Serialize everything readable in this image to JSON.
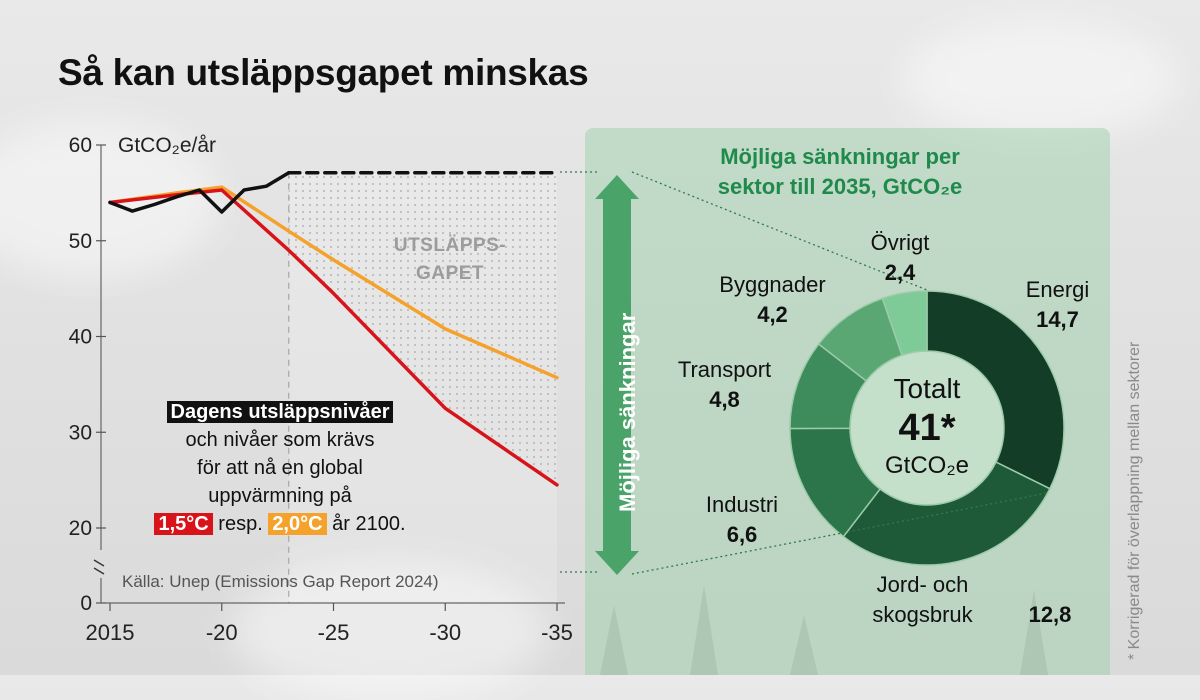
{
  "title": "Så kan utsläppsgapet minskas",
  "colors": {
    "black_line": "#111111",
    "red_line": "#d8141a",
    "orange_line": "#f5a22c",
    "dark_green": "#143d27",
    "green_2": "#1f5a38",
    "green_3": "#2c7449",
    "green_4": "#3e8b5b",
    "green_5": "#5aa773",
    "green_6": "#7ecb98",
    "title_green": "#1f8a4c"
  },
  "chart_data": [
    {
      "type": "line",
      "ylabel": "GtCO₂e/år",
      "x_ticks": [
        "2015",
        "-20",
        "-25",
        "-30",
        "-35"
      ],
      "y_ticks": [
        "0",
        "20",
        "30",
        "40",
        "50",
        "60"
      ],
      "y_axis_break": true,
      "ylim": [
        20,
        60
      ],
      "xlim": [
        2015,
        2035
      ],
      "series": [
        {
          "color": "#111111",
          "style": "solid",
          "points": [
            [
              2015,
              54.0
            ],
            [
              2016,
              53.1
            ],
            [
              2017,
              53.8
            ],
            [
              2018,
              54.6
            ],
            [
              2019,
              55.3
            ],
            [
              2020,
              53.0
            ],
            [
              2021,
              55.3
            ],
            [
              2022,
              55.7
            ],
            [
              2023,
              57.1
            ]
          ]
        },
        {
          "color": "#111111",
          "style": "dashed",
          "points": [
            [
              2023,
              57.1
            ],
            [
              2035,
              57.1
            ]
          ]
        },
        {
          "color": "#d8141a",
          "style": "solid",
          "points": [
            [
              2015,
              54.0
            ],
            [
              2018,
              54.8
            ],
            [
              2020,
              55.3
            ],
            [
              2023,
              49.0
            ],
            [
              2025,
              44.5
            ],
            [
              2030,
              32.5
            ],
            [
              2035,
              24.5
            ]
          ]
        },
        {
          "color": "#f5a22c",
          "style": "solid",
          "points": [
            [
              2015,
              54.0
            ],
            [
              2018,
              55.0
            ],
            [
              2020,
              55.6
            ],
            [
              2023,
              51.0
            ],
            [
              2025,
              48.0
            ],
            [
              2030,
              40.8
            ],
            [
              2035,
              35.7
            ]
          ]
        }
      ],
      "gap_label": [
        "UTSLÄPPS-",
        "GAPET"
      ],
      "annotation": {
        "line1": "Dagens utsläppsnivåer",
        "line2": "och nivåer som krävs",
        "line3": "för att nå en global",
        "line4": "uppvärmning på",
        "chip_red": "1,5°C",
        "middle": "resp.",
        "chip_orange": "2,0°C",
        "end": "år 2100."
      },
      "source": "Källa: Unep (Emissions Gap Report 2024)"
    },
    {
      "type": "pie",
      "title_line1": "Möjliga sänkningar per",
      "title_line2": "sektor till 2035, GtCO₂e",
      "arrow_label": "Möjliga sänkningar",
      "center": {
        "line1": "Totalt",
        "line2": "41*",
        "line3": "GtCO₂e"
      },
      "slices": [
        {
          "label": "Energi",
          "value": 14.7,
          "value_text": "14,7",
          "color": "#143d27"
        },
        {
          "label": "Jord- och skogsbruk",
          "label_line1": "Jord- och",
          "label_line2": "skogsbruk",
          "value": 12.8,
          "value_text": "12,8",
          "color": "#1f5a38"
        },
        {
          "label": "Industri",
          "value": 6.6,
          "value_text": "6,6",
          "color": "#2c7449"
        },
        {
          "label": "Transport",
          "value": 4.8,
          "value_text": "4,8",
          "color": "#3e8b5b"
        },
        {
          "label": "Byggnader",
          "value": 4.2,
          "value_text": "4,2",
          "color": "#5aa773"
        },
        {
          "label": "Övrigt",
          "value": 2.4,
          "value_text": "2,4",
          "color": "#7ecb98"
        }
      ],
      "footnote": "* Korrigerad för överlappning mellan sektorer"
    }
  ]
}
